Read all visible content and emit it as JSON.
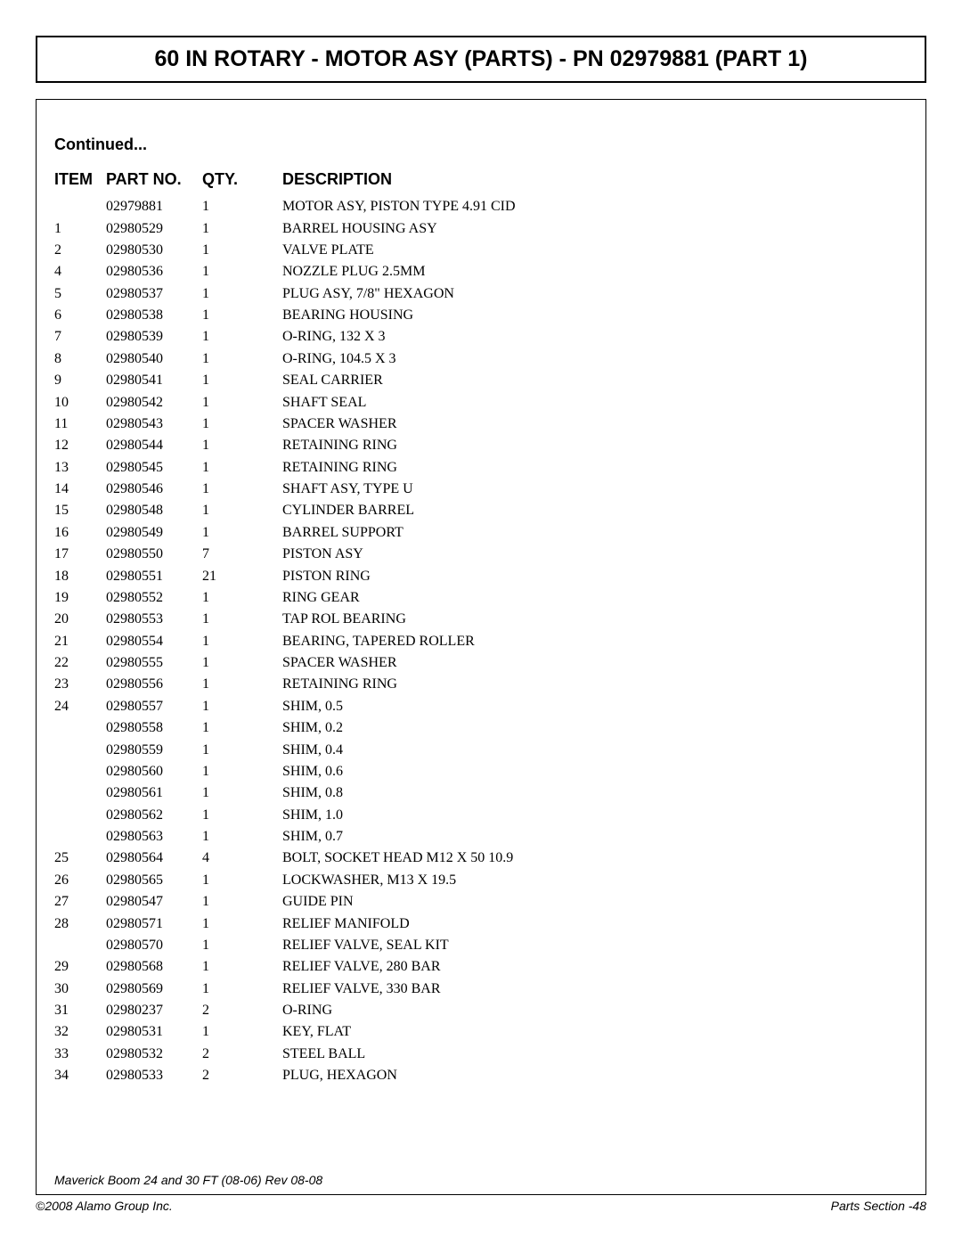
{
  "title": "60 IN ROTARY - MOTOR ASY (PARTS) - PN 02979881 (PART 1)",
  "continued_label": "Continued...",
  "columns": {
    "item": "ITEM",
    "partno": "PART NO.",
    "qty": "QTY.",
    "desc": "DESCRIPTION"
  },
  "rows": [
    {
      "item": "",
      "partno": "02979881",
      "qty": "1",
      "desc": "MOTOR ASY, PISTON TYPE 4.91 CID"
    },
    {
      "item": "1",
      "partno": "02980529",
      "qty": "1",
      "desc": "BARREL HOUSING ASY"
    },
    {
      "item": "2",
      "partno": "02980530",
      "qty": "1",
      "desc": "VALVE PLATE"
    },
    {
      "item": "4",
      "partno": "02980536",
      "qty": "1",
      "desc": "NOZZLE PLUG 2.5MM"
    },
    {
      "item": "5",
      "partno": "02980537",
      "qty": "1",
      "desc": "PLUG ASY, 7/8\" HEXAGON"
    },
    {
      "item": "6",
      "partno": "02980538",
      "qty": "1",
      "desc": "BEARING HOUSING"
    },
    {
      "item": "7",
      "partno": "02980539",
      "qty": "1",
      "desc": "O-RING, 132 X 3"
    },
    {
      "item": "8",
      "partno": "02980540",
      "qty": "1",
      "desc": "O-RING, 104.5 X 3"
    },
    {
      "item": "9",
      "partno": "02980541",
      "qty": "1",
      "desc": "SEAL CARRIER"
    },
    {
      "item": "10",
      "partno": "02980542",
      "qty": "1",
      "desc": "SHAFT SEAL"
    },
    {
      "item": "11",
      "partno": "02980543",
      "qty": "1",
      "desc": "SPACER WASHER"
    },
    {
      "item": "12",
      "partno": "02980544",
      "qty": "1",
      "desc": "RETAINING RING"
    },
    {
      "item": "13",
      "partno": "02980545",
      "qty": "1",
      "desc": "RETAINING RING"
    },
    {
      "item": "14",
      "partno": "02980546",
      "qty": "1",
      "desc": "SHAFT ASY, TYPE U"
    },
    {
      "item": "15",
      "partno": "02980548",
      "qty": "1",
      "desc": "CYLINDER BARREL"
    },
    {
      "item": "16",
      "partno": "02980549",
      "qty": "1",
      "desc": "BARREL SUPPORT"
    },
    {
      "item": "17",
      "partno": "02980550",
      "qty": "7",
      "desc": "PISTON ASY"
    },
    {
      "item": "18",
      "partno": "02980551",
      "qty": "21",
      "desc": "PISTON RING"
    },
    {
      "item": "19",
      "partno": "02980552",
      "qty": "1",
      "desc": "RING GEAR"
    },
    {
      "item": "20",
      "partno": "02980553",
      "qty": "1",
      "desc": "TAP ROL BEARING"
    },
    {
      "item": "21",
      "partno": "02980554",
      "qty": "1",
      "desc": "BEARING, TAPERED ROLLER"
    },
    {
      "item": "22",
      "partno": "02980555",
      "qty": "1",
      "desc": "SPACER WASHER"
    },
    {
      "item": "23",
      "partno": "02980556",
      "qty": "1",
      "desc": "RETAINING RING"
    },
    {
      "item": "24",
      "partno": "02980557",
      "qty": "1",
      "desc": "SHIM, 0.5"
    },
    {
      "item": "",
      "partno": "02980558",
      "qty": "1",
      "desc": "SHIM, 0.2"
    },
    {
      "item": "",
      "partno": "02980559",
      "qty": "1",
      "desc": "SHIM, 0.4"
    },
    {
      "item": "",
      "partno": "02980560",
      "qty": "1",
      "desc": "SHIM, 0.6"
    },
    {
      "item": "",
      "partno": "02980561",
      "qty": "1",
      "desc": "SHIM, 0.8"
    },
    {
      "item": "",
      "partno": "02980562",
      "qty": "1",
      "desc": "SHIM, 1.0"
    },
    {
      "item": "",
      "partno": "02980563",
      "qty": "1",
      "desc": "SHIM, 0.7"
    },
    {
      "item": "25",
      "partno": "02980564",
      "qty": "4",
      "desc": "BOLT, SOCKET HEAD M12 X 50 10.9"
    },
    {
      "item": "26",
      "partno": "02980565",
      "qty": "1",
      "desc": "LOCKWASHER, M13 X 19.5"
    },
    {
      "item": "27",
      "partno": "02980547",
      "qty": "1",
      "desc": "GUIDE PIN"
    },
    {
      "item": "28",
      "partno": "02980571",
      "qty": "1",
      "desc": "RELIEF MANIFOLD"
    },
    {
      "item": "",
      "partno": "02980570",
      "qty": "1",
      "desc": "RELIEF VALVE, SEAL KIT"
    },
    {
      "item": "29",
      "partno": "02980568",
      "qty": "1",
      "desc": "RELIEF VALVE, 280 BAR"
    },
    {
      "item": "30",
      "partno": "02980569",
      "qty": "1",
      "desc": "RELIEF VALVE, 330 BAR"
    },
    {
      "item": "31",
      "partno": "02980237",
      "qty": "2",
      "desc": "O-RING"
    },
    {
      "item": "32",
      "partno": "02980531",
      "qty": "1",
      "desc": "KEY, FLAT"
    },
    {
      "item": "33",
      "partno": "02980532",
      "qty": "2",
      "desc": "STEEL BALL"
    },
    {
      "item": "34",
      "partno": "02980533",
      "qty": "2",
      "desc": "PLUG, HEXAGON"
    }
  ],
  "rev_line": "Maverick Boom 24 and 30 FT (08-06) Rev 08-08",
  "footer_left": "©2008 Alamo Group Inc.",
  "footer_right": "Parts Section -48"
}
